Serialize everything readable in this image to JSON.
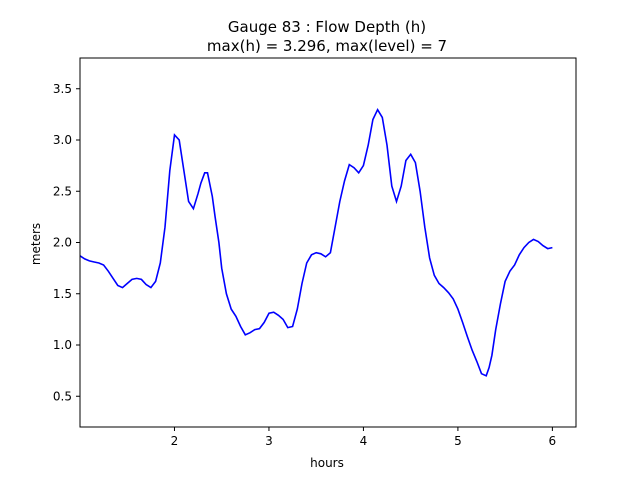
{
  "chart_data": {
    "type": "line",
    "title_line1": "Gauge 83 : Flow Depth (h)",
    "title_line2": "max(h) =   3.296,    max(level) = 7",
    "xlabel": "hours",
    "ylabel": "meters",
    "xlim": [
      1.0,
      6.25
    ],
    "ylim": [
      0.2,
      3.8
    ],
    "xticks": [
      2,
      3,
      4,
      5,
      6
    ],
    "yticks": [
      0.5,
      1.0,
      1.5,
      2.0,
      2.5,
      3.0,
      3.5
    ],
    "xtick_labels": [
      "2",
      "3",
      "4",
      "5",
      "6"
    ],
    "ytick_labels": [
      "0.5",
      "1.0",
      "1.5",
      "2.0",
      "2.5",
      "3.0",
      "3.5"
    ],
    "grid": false,
    "line_color": "#0000ff",
    "series": [
      {
        "x": [
          1.0,
          1.05,
          1.1,
          1.15,
          1.2,
          1.25,
          1.3,
          1.35,
          1.4,
          1.45,
          1.5,
          1.55,
          1.6,
          1.65,
          1.7,
          1.75,
          1.8,
          1.85,
          1.9,
          1.95,
          2.0,
          2.05,
          2.1,
          2.15,
          2.2,
          2.25,
          2.28,
          2.32,
          2.35,
          2.4,
          2.43,
          2.47,
          2.5,
          2.55,
          2.6,
          2.65,
          2.7,
          2.75,
          2.8,
          2.85,
          2.9,
          2.95,
          3.0,
          3.05,
          3.1,
          3.15,
          3.2,
          3.25,
          3.3,
          3.35,
          3.4,
          3.45,
          3.5,
          3.55,
          3.6,
          3.65,
          3.7,
          3.75,
          3.8,
          3.85,
          3.9,
          3.95,
          4.0,
          4.05,
          4.1,
          4.15,
          4.2,
          4.25,
          4.3,
          4.35,
          4.4,
          4.45,
          4.5,
          4.55,
          4.6,
          4.65,
          4.7,
          4.75,
          4.8,
          4.85,
          4.9,
          4.95,
          5.0,
          5.05,
          5.1,
          5.15,
          5.2,
          5.25,
          5.3,
          5.33,
          5.36,
          5.4,
          5.45,
          5.5,
          5.55,
          5.6,
          5.65,
          5.7,
          5.75,
          5.8,
          5.85,
          5.9,
          5.95,
          6.0
        ],
        "y": [
          1.87,
          1.84,
          1.82,
          1.81,
          1.8,
          1.78,
          1.72,
          1.65,
          1.58,
          1.56,
          1.6,
          1.64,
          1.65,
          1.64,
          1.59,
          1.56,
          1.62,
          1.8,
          2.15,
          2.7,
          3.05,
          3.0,
          2.7,
          2.4,
          2.33,
          2.48,
          2.58,
          2.68,
          2.68,
          2.45,
          2.25,
          2.0,
          1.75,
          1.5,
          1.35,
          1.28,
          1.18,
          1.1,
          1.12,
          1.15,
          1.16,
          1.22,
          1.31,
          1.32,
          1.29,
          1.25,
          1.17,
          1.18,
          1.35,
          1.6,
          1.8,
          1.88,
          1.9,
          1.89,
          1.86,
          1.9,
          2.15,
          2.4,
          2.6,
          2.76,
          2.73,
          2.68,
          2.75,
          2.95,
          3.2,
          3.296,
          3.22,
          2.95,
          2.55,
          2.4,
          2.55,
          2.8,
          2.86,
          2.78,
          2.5,
          2.15,
          1.85,
          1.68,
          1.6,
          1.56,
          1.51,
          1.45,
          1.35,
          1.22,
          1.08,
          0.95,
          0.84,
          0.72,
          0.7,
          0.78,
          0.9,
          1.15,
          1.4,
          1.62,
          1.72,
          1.78,
          1.88,
          1.95,
          2.0,
          2.03,
          2.01,
          1.97,
          1.94,
          1.95
        ]
      }
    ]
  }
}
